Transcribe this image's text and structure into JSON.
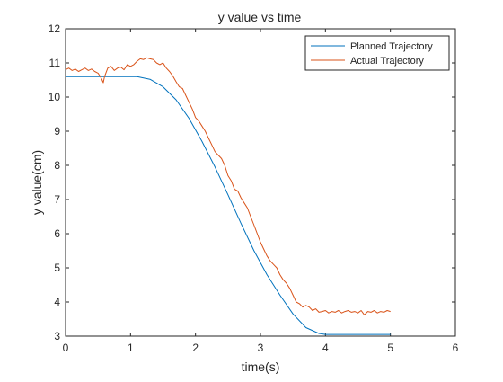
{
  "chart_data": {
    "type": "line",
    "title": "y value vs time",
    "xlabel": "time(s)",
    "ylabel": "y value(cm)",
    "xlim": [
      0,
      6
    ],
    "ylim": [
      3,
      12
    ],
    "xticks": [
      "0",
      "1",
      "2",
      "3",
      "4",
      "5",
      "6"
    ],
    "yticks": [
      "3",
      "4",
      "5",
      "6",
      "7",
      "8",
      "9",
      "10",
      "11",
      "12"
    ],
    "grid": false,
    "legend_position": "top-right",
    "series": [
      {
        "name": "Planned Trajectory",
        "color": "#0072BD",
        "x": [
          0,
          0.5,
          1.0,
          1.1,
          1.3,
          1.5,
          1.7,
          1.9,
          2.1,
          2.3,
          2.5,
          2.7,
          2.9,
          3.1,
          3.3,
          3.5,
          3.7,
          3.9,
          4.0,
          4.5,
          5.0
        ],
        "y": [
          10.6,
          10.6,
          10.6,
          10.6,
          10.52,
          10.3,
          9.92,
          9.38,
          8.7,
          7.95,
          7.14,
          6.3,
          5.5,
          4.8,
          4.2,
          3.65,
          3.25,
          3.08,
          3.05,
          3.05,
          3.05
        ]
      },
      {
        "name": "Actual Trajectory",
        "color": "#D95319",
        "x": [
          0,
          0.05,
          0.1,
          0.15,
          0.2,
          0.25,
          0.3,
          0.35,
          0.4,
          0.45,
          0.5,
          0.55,
          0.58,
          0.6,
          0.65,
          0.7,
          0.75,
          0.8,
          0.85,
          0.9,
          0.95,
          1.0,
          1.05,
          1.1,
          1.15,
          1.2,
          1.25,
          1.3,
          1.35,
          1.4,
          1.45,
          1.5,
          1.55,
          1.6,
          1.65,
          1.7,
          1.75,
          1.8,
          1.85,
          1.9,
          1.95,
          2.0,
          2.05,
          2.1,
          2.15,
          2.2,
          2.25,
          2.3,
          2.35,
          2.4,
          2.45,
          2.5,
          2.55,
          2.6,
          2.65,
          2.7,
          2.75,
          2.8,
          2.85,
          2.9,
          2.95,
          3.0,
          3.05,
          3.1,
          3.15,
          3.2,
          3.25,
          3.3,
          3.35,
          3.4,
          3.45,
          3.5,
          3.55,
          3.6,
          3.65,
          3.7,
          3.75,
          3.8,
          3.85,
          3.9,
          3.95,
          4.0,
          4.05,
          4.1,
          4.15,
          4.2,
          4.25,
          4.3,
          4.35,
          4.4,
          4.45,
          4.5,
          4.55,
          4.6,
          4.65,
          4.7,
          4.75,
          4.8,
          4.85,
          4.9,
          4.95,
          5.0
        ],
        "y": [
          10.8,
          10.85,
          10.78,
          10.82,
          10.75,
          10.8,
          10.85,
          10.78,
          10.82,
          10.75,
          10.7,
          10.55,
          10.42,
          10.6,
          10.85,
          10.9,
          10.78,
          10.85,
          10.88,
          10.8,
          10.95,
          10.9,
          10.95,
          11.05,
          11.12,
          11.1,
          11.15,
          11.12,
          11.1,
          11.0,
          10.95,
          11.0,
          10.85,
          10.75,
          10.62,
          10.45,
          10.3,
          10.25,
          10.05,
          9.85,
          9.65,
          9.4,
          9.3,
          9.15,
          9.0,
          8.8,
          8.6,
          8.4,
          8.3,
          8.2,
          8.0,
          7.7,
          7.55,
          7.3,
          7.25,
          7.05,
          6.9,
          6.75,
          6.5,
          6.25,
          6.0,
          5.75,
          5.55,
          5.35,
          5.2,
          5.1,
          5.0,
          4.8,
          4.65,
          4.55,
          4.4,
          4.2,
          4.0,
          3.95,
          3.85,
          3.9,
          3.85,
          3.75,
          3.8,
          3.7,
          3.72,
          3.75,
          3.68,
          3.72,
          3.7,
          3.75,
          3.68,
          3.72,
          3.75,
          3.7,
          3.72,
          3.68,
          3.75,
          3.62,
          3.72,
          3.7,
          3.75,
          3.68,
          3.72,
          3.7,
          3.75,
          3.72
        ]
      }
    ]
  }
}
